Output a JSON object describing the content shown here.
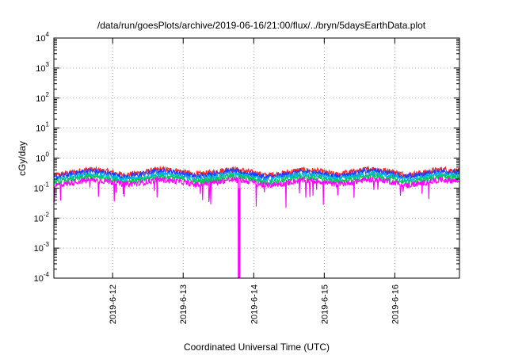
{
  "chart_data": {
    "type": "line",
    "title": "/data/run/goesPlots/archive/2019-06-16/21:00/flux/../bryn/5daysEarthData.plot",
    "xlabel": "Coordinated Universal Time (UTC)",
    "ylabel": "cGy/day",
    "y_scale": "log",
    "ylim_exponents": [
      -4,
      4
    ],
    "y_tick_exponents": [
      -4,
      -3,
      -2,
      -1,
      0,
      1,
      2,
      3,
      4
    ],
    "xlim": [
      "2019-06-11T04:00",
      "2019-06-16T22:00"
    ],
    "x_ticks": [
      {
        "label": "2019-6-12",
        "x": "2019-06-12T00:00"
      },
      {
        "label": "2019-6-13",
        "x": "2019-06-13T00:00"
      },
      {
        "label": "2019-6-14",
        "x": "2019-06-14T00:00"
      },
      {
        "label": "2019-6-15",
        "x": "2019-06-15T00:00"
      },
      {
        "label": "2019-6-16",
        "x": "2019-06-16T00:00"
      }
    ],
    "grid": true,
    "legend": "none",
    "series": [
      {
        "color": "#ff2020",
        "values": [
          0.26,
          0.33,
          0.42,
          0.36,
          0.27,
          0.33,
          0.42,
          0.38,
          0.28,
          0.33,
          0.43,
          0.36,
          0.26,
          0.31,
          0.4,
          0.37,
          0.28,
          0.35,
          0.44,
          0.37,
          0.27,
          0.33,
          0.42,
          0.37
        ]
      },
      {
        "color": "#1c3cff",
        "values": [
          0.22,
          0.29,
          0.37,
          0.31,
          0.23,
          0.29,
          0.37,
          0.33,
          0.24,
          0.29,
          0.37,
          0.31,
          0.22,
          0.27,
          0.35,
          0.32,
          0.24,
          0.3,
          0.38,
          0.32,
          0.23,
          0.29,
          0.37,
          0.32
        ]
      },
      {
        "color": "#00b4e6",
        "values": [
          0.18,
          0.23,
          0.29,
          0.25,
          0.19,
          0.23,
          0.29,
          0.26,
          0.19,
          0.23,
          0.29,
          0.25,
          0.18,
          0.22,
          0.28,
          0.26,
          0.19,
          0.24,
          0.3,
          0.26,
          0.18,
          0.23,
          0.29,
          0.26
        ]
      },
      {
        "color": "#00c850",
        "values": [
          0.15,
          0.19,
          0.24,
          0.21,
          0.16,
          0.19,
          0.24,
          0.22,
          0.16,
          0.19,
          0.24,
          0.21,
          0.15,
          0.18,
          0.23,
          0.21,
          0.16,
          0.2,
          0.25,
          0.21,
          0.15,
          0.19,
          0.24,
          0.21
        ]
      },
      {
        "color": "#ff00ff",
        "values": [
          0.12,
          0.15,
          0.19,
          0.17,
          0.13,
          0.15,
          0.19,
          0.17,
          0.13,
          0.15,
          0.19,
          0.17,
          0.12,
          0.14,
          0.18,
          0.17,
          0.13,
          0.16,
          0.2,
          0.17,
          0.12,
          0.15,
          0.19,
          0.17
        ]
      }
    ],
    "annotations": [
      {
        "x": "2019-06-13T19:00",
        "y": 0.0001,
        "text": ""
      }
    ]
  }
}
